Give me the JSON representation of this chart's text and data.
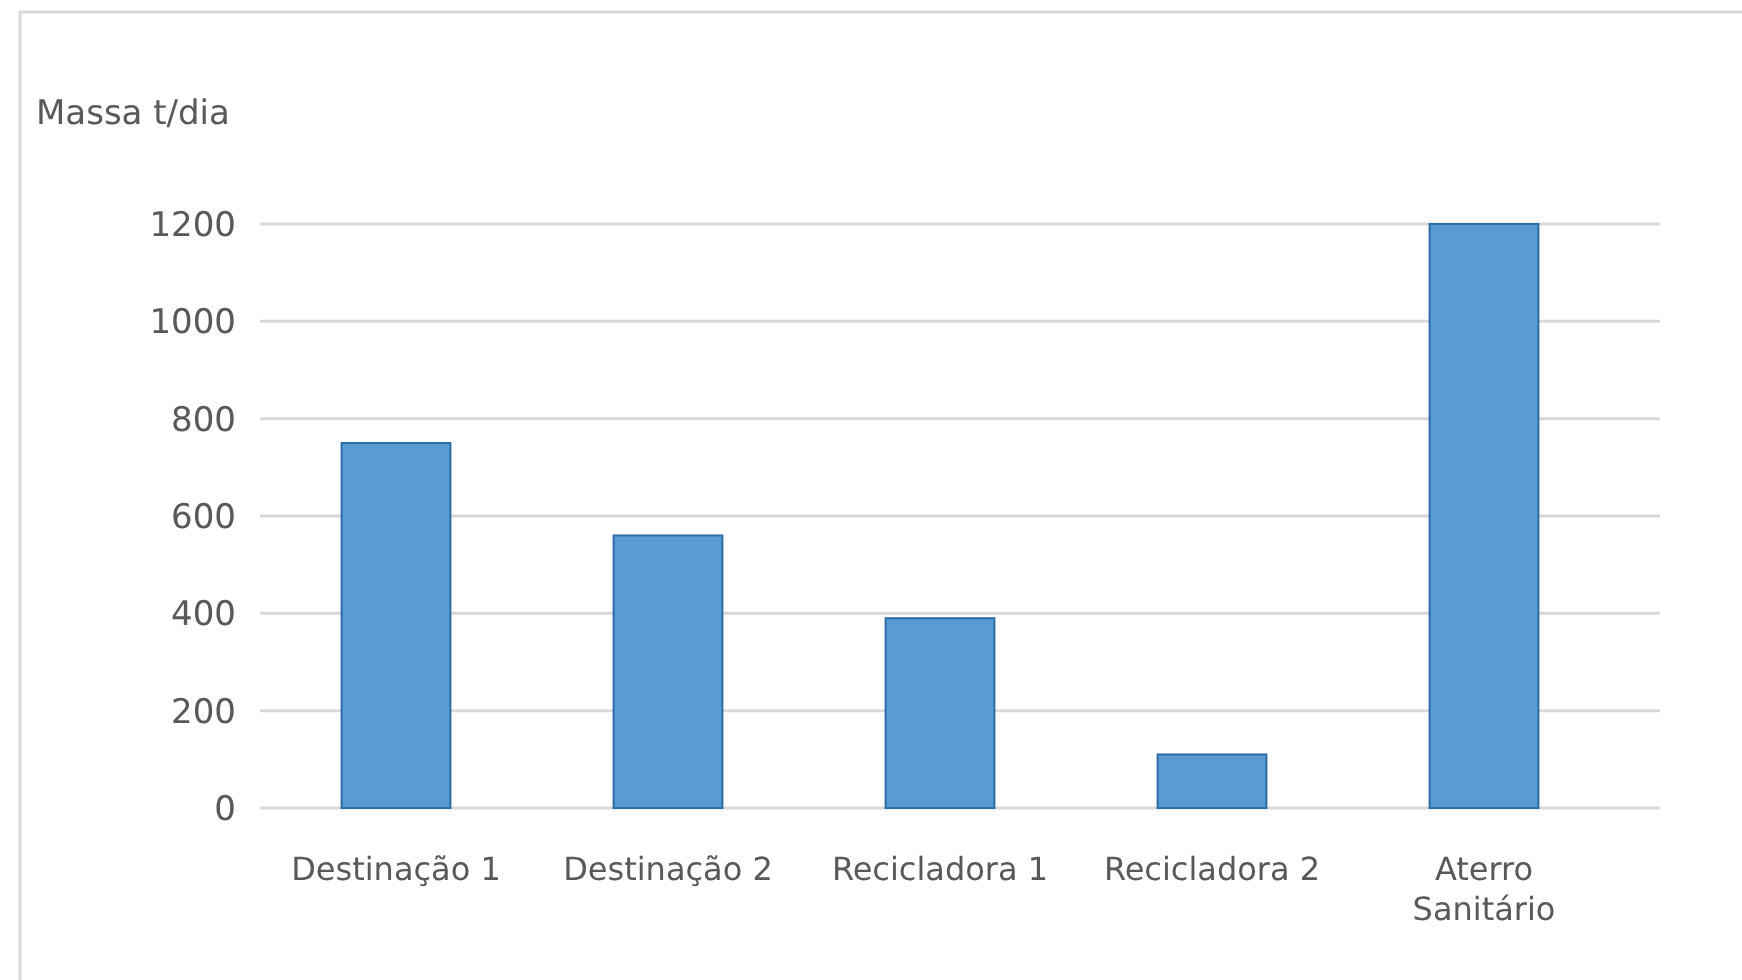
{
  "chart_data": {
    "type": "bar",
    "ylabel": "Massa t/dia",
    "categories": [
      "Destinação 1",
      "Destinação 2",
      "Recicladora 1",
      "Recicladora 2",
      "Aterro Sanitário"
    ],
    "values": [
      750,
      560,
      390,
      110,
      1200
    ],
    "color": "#5b9bd5",
    "ylim": [
      0,
      1200
    ],
    "yticks": [
      0,
      200,
      400,
      600,
      800,
      1000,
      1200
    ],
    "grid": "y"
  }
}
